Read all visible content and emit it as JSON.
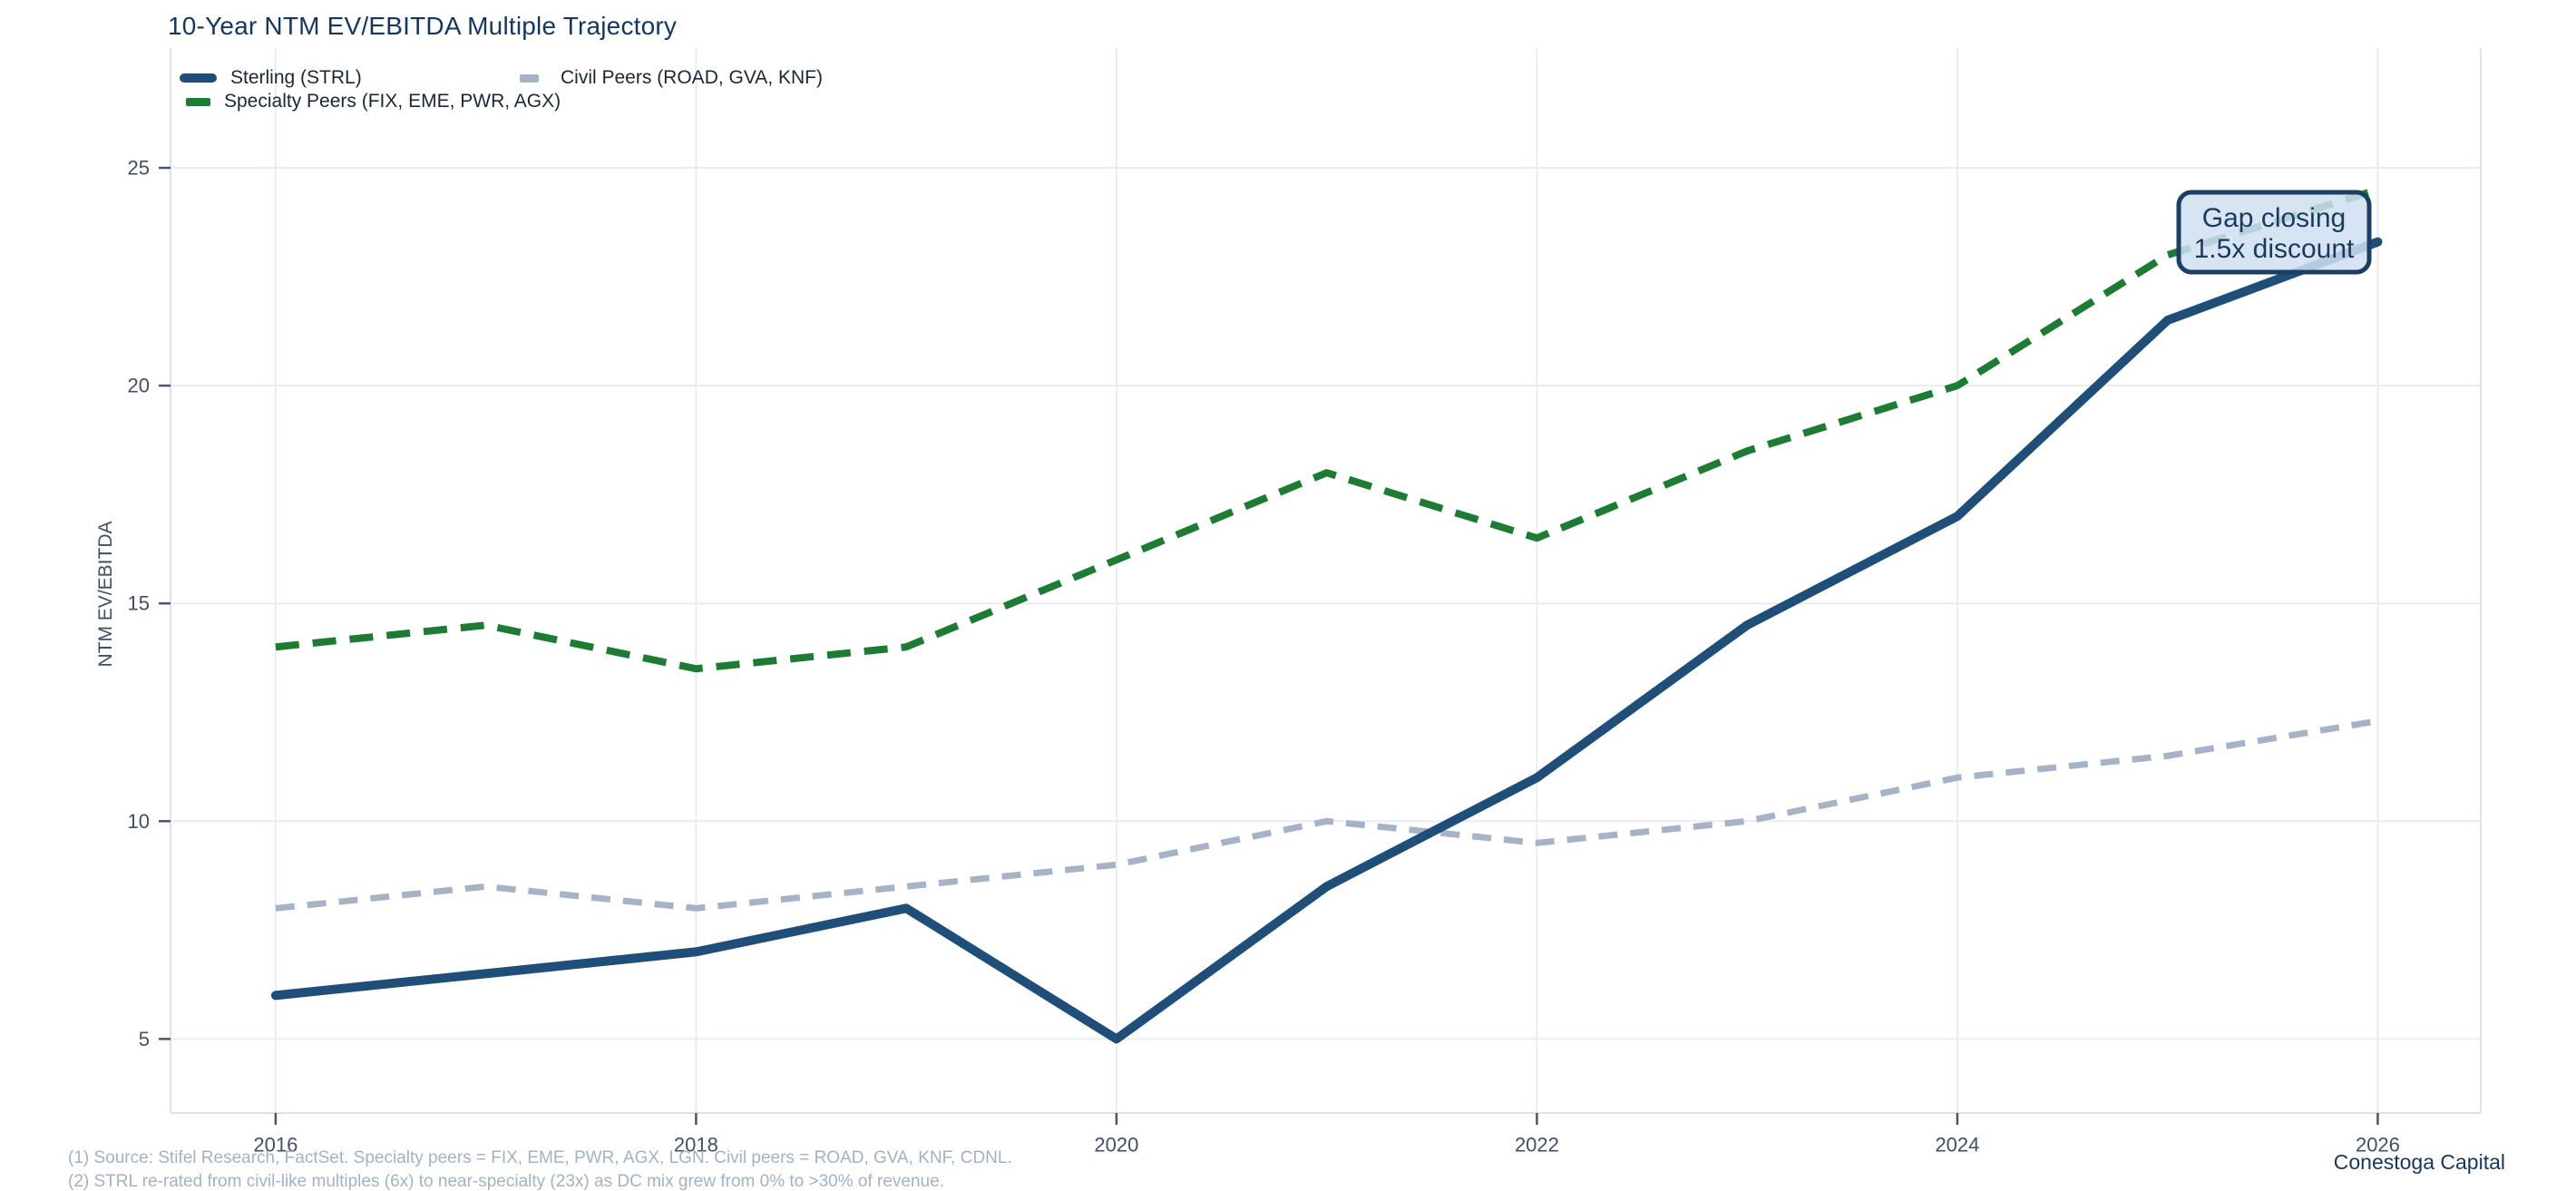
{
  "title": "10-Year NTM EV/EBITDA Multiple Trajectory",
  "branding": "Conestoga Capital",
  "colors": {
    "title": "#16365c",
    "sterling": "#1f4e79",
    "specialty": "#1e7b34",
    "civil": "#a6b2c5",
    "gridline": "#e9ecf3",
    "spine": "#dde2ea",
    "tick": "#4a5568",
    "tick_label": "#414f66",
    "footnote": "#a3b2c3",
    "annotation_fill": "#cfe0f2",
    "annotation_border": "#1d3e63",
    "annotation_text": "#1b3a5c"
  },
  "annotation": {
    "line1": "Gap closing",
    "line2": "1.5x discount"
  },
  "footnotes": [
    "(1) Source: Stifel Research, FactSet. Specialty peers = FIX, EME, PWR, AGX, LGN. Civil peers = ROAD, GVA, KNF, CDNL.",
    "(2) STRL re-rated from civil-like multiples (6x) to near-specialty (23x) as DC mix grew from 0% to >30% of revenue."
  ],
  "chart_data": {
    "type": "line",
    "title": "10-Year NTM EV/EBITDA Multiple Trajectory",
    "xlabel": "",
    "ylabel": "NTM EV/EBITDA",
    "x": [
      2016,
      2017,
      2018,
      2019,
      2020,
      2021,
      2022,
      2023,
      2024,
      2025,
      2026
    ],
    "xticks": [
      2016,
      2018,
      2020,
      2022,
      2024,
      2026
    ],
    "yticks": [
      5,
      10,
      15,
      20,
      25
    ],
    "xlim": [
      2015.5,
      2026.49
    ],
    "ylim": [
      3.3,
      27.75
    ],
    "grid": true,
    "legend_position": "top-left",
    "series": [
      {
        "name": "Sterling (STRL)",
        "color": "#1f4e79",
        "style": "solid",
        "width": 10,
        "values": [
          6.0,
          6.5,
          7.0,
          8.0,
          5.0,
          8.5,
          11.0,
          14.5,
          17.0,
          21.5,
          23.3
        ]
      },
      {
        "name": "Specialty Peers (FIX, EME, PWR, AGX)",
        "color": "#1e7b34",
        "style": "dashed",
        "width": 8,
        "values": [
          14.0,
          14.5,
          13.5,
          14.0,
          16.0,
          18.0,
          16.5,
          18.5,
          20.0,
          23.0,
          24.5
        ]
      },
      {
        "name": "Civil Peers (ROAD, GVA, KNF)",
        "color": "#a6b2c5",
        "style": "dashed",
        "width": 7,
        "values": [
          8.0,
          8.5,
          8.0,
          8.5,
          9.0,
          10.0,
          9.5,
          10.0,
          11.0,
          11.5,
          12.3
        ]
      }
    ]
  }
}
